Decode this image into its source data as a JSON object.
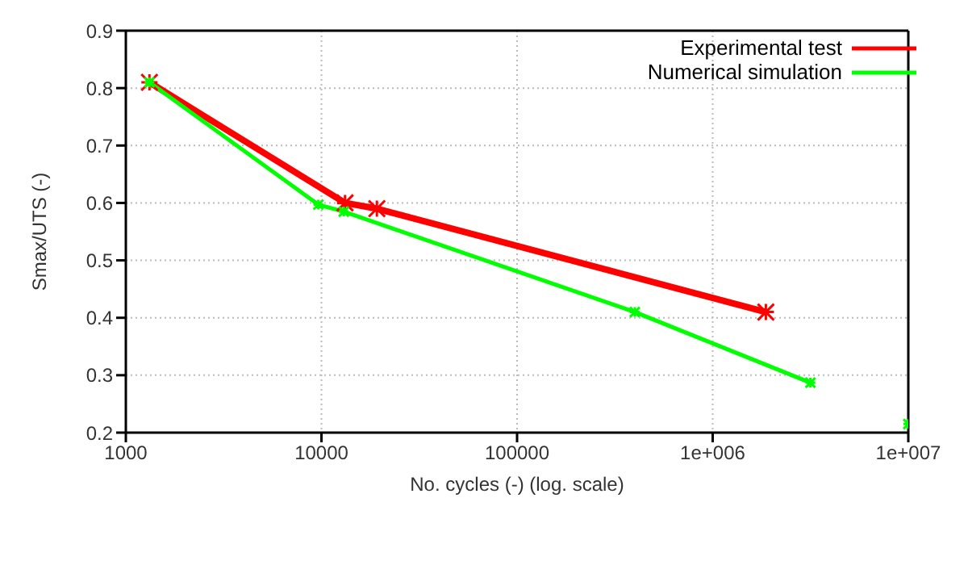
{
  "chart_data": {
    "type": "line",
    "xlabel": "No. cycles (-) (log. scale)",
    "ylabel": "Smax/UTS (-)",
    "log": "x",
    "grid": true,
    "legend": "top right",
    "marker": "cross",
    "line_style": "solid",
    "xlim": [
      1000,
      10000000
    ],
    "xticks": [
      1000,
      10000,
      100000,
      {
        "value": 1000000,
        "label": "1e+006"
      },
      {
        "value": 10000000,
        "label": "1e+007"
      }
    ],
    "ylim": [
      0.2,
      0.9
    ],
    "yticks": [
      0.2,
      0.3,
      0.4,
      0.5,
      0.6,
      0.7,
      0.8,
      0.9
    ],
    "series": [
      {
        "name": "Experimental test",
        "color": "#ff0000",
        "x": [
          1320,
          13200,
          19200,
          1870000
        ],
        "values": [
          0.81,
          0.6,
          0.59,
          0.41
        ]
      },
      {
        "name": "Numerical simulation",
        "color": "#00ff00",
        "x": [
          1320,
          9640,
          13000,
          400000,
          3160000
        ],
        "values": [
          0.81,
          0.597,
          0.585,
          0.41,
          0.287
        ]
      },
      {
        "type": "scatter",
        "color": "#00ff00",
        "x": [
          10000000
        ],
        "values": [
          0.215
        ]
      }
    ]
  }
}
